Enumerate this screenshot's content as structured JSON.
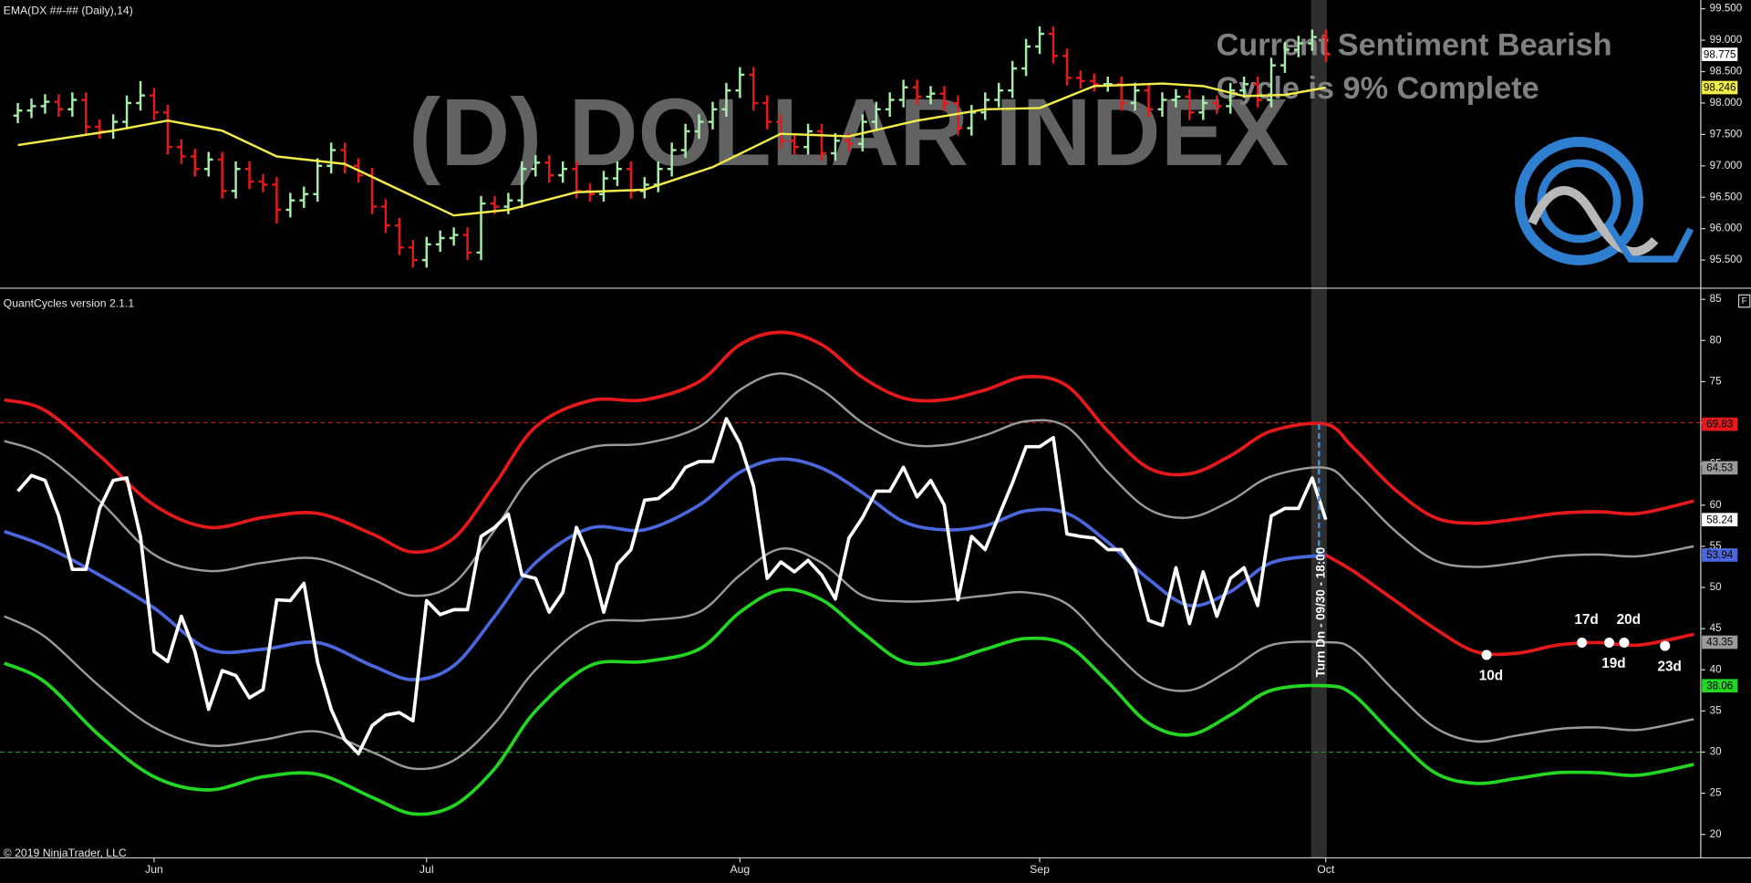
{
  "chart_data": [
    {
      "type": "ohlc",
      "title": "EMA(DX ##-## (Daily),14)",
      "watermark": "(D) DOLLAR INDEX",
      "annotations": [
        "Current Sentiment Bearish",
        "Cycle is 9% Complete"
      ],
      "up_color": "#a8ecab",
      "down_color": "#e5191c",
      "xlim": [
        -11.31,
        113.52
      ],
      "ylim": [
        95.07,
        99.64
      ],
      "yticks": [
        {
          "value": 95.5,
          "label": "95.500"
        },
        {
          "value": 96,
          "label": "96.000"
        },
        {
          "value": 96.5,
          "label": "96.500"
        },
        {
          "value": 97,
          "label": "97.000"
        },
        {
          "value": 97.5,
          "label": "97.500"
        },
        {
          "value": 98,
          "label": "98.000"
        },
        {
          "value": 98.5,
          "label": "98.500"
        },
        {
          "value": 99,
          "label": "99.000"
        },
        {
          "value": 99.5,
          "label": "99.500"
        }
      ],
      "x": [
        -10,
        -9,
        -8,
        -7,
        -6,
        -5,
        -4,
        -3,
        -2,
        -1,
        0,
        1,
        2,
        3,
        4,
        5,
        6,
        7,
        8,
        9,
        10,
        11,
        12,
        13,
        14,
        15,
        16,
        17,
        18,
        19,
        20,
        21,
        22,
        23,
        24,
        25,
        26,
        27,
        28,
        29,
        30,
        31,
        32,
        33,
        34,
        35,
        36,
        37,
        38,
        39,
        40,
        41,
        42,
        43,
        44,
        45,
        46,
        47,
        48,
        49,
        50,
        51,
        52,
        53,
        54,
        55,
        56,
        57,
        58,
        59,
        60,
        61,
        62,
        63,
        64,
        65,
        66,
        67,
        68,
        69,
        70,
        71,
        72,
        73,
        74,
        75,
        76,
        77,
        78,
        79,
        80,
        81,
        82,
        83,
        84,
        85,
        86
      ],
      "open": [
        97.8,
        97.88,
        97.95,
        98.02,
        97.9,
        98.05,
        97.62,
        97.55,
        97.7,
        98.0,
        98.12,
        97.85,
        97.3,
        97.15,
        96.95,
        97.1,
        96.6,
        96.95,
        96.75,
        96.7,
        96.3,
        96.45,
        96.55,
        97.0,
        97.25,
        97.0,
        96.85,
        96.35,
        96.05,
        95.7,
        95.5,
        95.75,
        95.85,
        95.9,
        95.62,
        96.4,
        96.35,
        96.45,
        96.95,
        97.05,
        96.85,
        96.95,
        96.6,
        96.55,
        96.8,
        96.95,
        96.6,
        96.7,
        96.95,
        97.25,
        97.55,
        97.7,
        97.9,
        98.2,
        98.45,
        98.0,
        97.7,
        97.4,
        97.3,
        97.55,
        97.2,
        97.4,
        97.35,
        97.7,
        97.9,
        98.05,
        98.25,
        98.1,
        98.15,
        98.0,
        97.6,
        97.85,
        98.05,
        98.2,
        98.55,
        98.9,
        99.1,
        98.75,
        98.4,
        98.35,
        98.3,
        98.3,
        98.0,
        98.2,
        97.9,
        98.05,
        98.1,
        97.85,
        98.0,
        97.95,
        98.2,
        98.3,
        98.05,
        98.6,
        98.85,
        98.95,
        99.05
      ],
      "high": [
        98.0,
        98.07,
        98.14,
        98.14,
        98.17,
        98.17,
        97.74,
        97.82,
        98.12,
        98.35,
        98.24,
        97.97,
        97.42,
        97.27,
        97.22,
        97.22,
        97.07,
        97.07,
        96.87,
        96.82,
        96.57,
        96.67,
        97.12,
        97.37,
        97.37,
        97.12,
        96.97,
        96.47,
        96.17,
        95.82,
        95.87,
        95.97,
        96.02,
        96.02,
        96.52,
        96.52,
        96.57,
        97.07,
        97.17,
        97.17,
        97.07,
        97.07,
        96.72,
        96.92,
        97.07,
        97.07,
        96.82,
        97.07,
        97.37,
        97.67,
        97.82,
        98.02,
        98.32,
        98.57,
        98.57,
        98.12,
        97.82,
        97.52,
        97.67,
        97.67,
        97.52,
        97.52,
        97.82,
        98.02,
        98.17,
        98.37,
        98.37,
        98.27,
        98.27,
        98.12,
        97.97,
        98.17,
        98.32,
        98.67,
        99.02,
        99.22,
        99.22,
        98.87,
        98.52,
        98.47,
        98.42,
        98.42,
        98.32,
        98.32,
        98.17,
        98.22,
        98.22,
        98.12,
        98.12,
        98.32,
        98.42,
        98.42,
        98.72,
        98.97,
        99.07,
        99.17,
        99.17
      ],
      "low": [
        97.68,
        97.76,
        97.83,
        97.78,
        97.78,
        97.5,
        97.43,
        97.43,
        97.58,
        97.88,
        97.73,
        97.18,
        97.03,
        96.83,
        96.83,
        96.48,
        96.48,
        96.63,
        96.58,
        96.08,
        96.18,
        96.33,
        96.43,
        96.88,
        96.88,
        96.73,
        96.23,
        95.93,
        95.58,
        95.38,
        95.38,
        95.63,
        95.73,
        95.5,
        95.5,
        96.23,
        96.23,
        96.33,
        96.83,
        96.73,
        96.73,
        96.48,
        96.43,
        96.43,
        96.68,
        96.48,
        96.48,
        96.58,
        96.83,
        97.13,
        97.43,
        97.58,
        97.78,
        98.08,
        97.88,
        97.58,
        97.28,
        97.18,
        97.18,
        97.08,
        97.08,
        97.23,
        97.23,
        97.58,
        97.78,
        97.93,
        97.98,
        97.98,
        97.88,
        97.48,
        97.48,
        97.73,
        97.93,
        98.08,
        98.43,
        98.78,
        98.63,
        98.28,
        98.23,
        98.18,
        98.18,
        97.88,
        97.88,
        97.78,
        97.78,
        97.93,
        97.73,
        97.73,
        97.83,
        97.83,
        98.08,
        97.93,
        97.93,
        98.48,
        98.73,
        98.83,
        98.655
      ],
      "close": [
        97.88,
        97.95,
        98.02,
        97.9,
        98.05,
        97.62,
        97.55,
        97.7,
        98.0,
        98.12,
        97.85,
        97.3,
        97.15,
        96.95,
        97.1,
        96.6,
        96.95,
        96.75,
        96.7,
        96.3,
        96.45,
        96.55,
        97.0,
        97.25,
        97.0,
        96.85,
        96.35,
        96.05,
        95.7,
        95.5,
        95.75,
        95.85,
        95.9,
        95.62,
        96.4,
        96.35,
        96.45,
        96.95,
        97.05,
        96.85,
        96.95,
        96.6,
        96.55,
        96.8,
        96.95,
        96.6,
        96.7,
        96.95,
        97.25,
        97.55,
        97.7,
        97.9,
        98.2,
        98.45,
        98.0,
        97.7,
        97.4,
        97.3,
        97.55,
        97.2,
        97.4,
        97.35,
        97.7,
        97.9,
        98.05,
        98.25,
        98.1,
        98.15,
        98.0,
        97.6,
        97.85,
        98.05,
        98.2,
        98.55,
        98.9,
        99.1,
        98.75,
        98.4,
        98.35,
        98.3,
        98.3,
        98.0,
        98.2,
        97.9,
        98.05,
        98.1,
        97.85,
        98.0,
        97.95,
        98.2,
        98.3,
        98.05,
        98.6,
        98.85,
        98.95,
        99.05,
        98.775
      ],
      "series": [
        {
          "color": "#f2ec4a",
          "width": 2,
          "x": [
            -10,
            -3,
            1,
            5,
            9,
            14,
            18,
            22,
            26,
            31,
            36,
            41,
            46,
            51,
            56,
            61,
            65,
            69,
            74,
            77,
            80,
            83,
            86
          ],
          "values": [
            97.33,
            97.56,
            97.72,
            97.56,
            97.15,
            97.03,
            96.62,
            96.21,
            96.3,
            96.58,
            96.62,
            96.98,
            97.51,
            97.47,
            97.72,
            97.9,
            97.92,
            98.27,
            98.31,
            98.27,
            98.11,
            98.13,
            98.246
          ]
        }
      ]
    },
    {
      "type": "line",
      "title": "QuantCycles version 2.1.1",
      "footer": "© 2019 NinjaTrader, LLC",
      "button": "F",
      "turn": {
        "x": 85.5,
        "label": "Turn Dn - 09/30 - 18:00"
      },
      "xlim": [
        -11.31,
        113.52
      ],
      "ylim": [
        17.15,
        86.22
      ],
      "xticks": [
        {
          "value": 0,
          "label": "Jun"
        },
        {
          "value": 20,
          "label": "Jul"
        },
        {
          "value": 43,
          "label": "Aug"
        },
        {
          "value": 65,
          "label": "Sep"
        },
        {
          "value": 86,
          "label": "Oct"
        }
      ],
      "yticks": [
        20,
        25,
        30,
        35,
        40,
        45,
        50,
        55,
        60,
        65,
        70,
        75,
        80,
        85
      ],
      "hlines": [
        {
          "value": 70,
          "color": "#b3261e"
        },
        {
          "value": 30,
          "color": "#2f8f2f"
        }
      ],
      "x": [
        -11,
        -8,
        -4,
        0,
        4,
        8,
        12,
        16,
        19,
        22,
        25,
        28,
        32,
        36,
        40,
        43,
        46,
        49,
        52,
        55,
        58,
        61,
        64,
        67,
        70,
        73,
        76,
        79,
        82,
        86,
        88,
        91,
        94,
        97,
        100,
        103,
        106,
        109,
        113
      ],
      "series": [
        {
          "color": "#e5191c",
          "width": 3,
          "smooth": true,
          "values": [
            72.8,
            71.5,
            66,
            60,
            57.3,
            58.5,
            59,
            56.5,
            54.3,
            56,
            62.5,
            69.5,
            72.7,
            72.8,
            75,
            79.5,
            81,
            79.5,
            75.5,
            73,
            72.8,
            74,
            75.6,
            74.5,
            69,
            64.5,
            63.8,
            66,
            69,
            69.83,
            67,
            62,
            58.5,
            57.8,
            58.3,
            59,
            59.2,
            59,
            60.5
          ]
        },
        {
          "color": "#9a9a9a",
          "width": 2,
          "smooth": true,
          "values": [
            67.8,
            66,
            60.5,
            54,
            52,
            53,
            53.5,
            51,
            49,
            50.5,
            57,
            64,
            67,
            67.5,
            69.5,
            74,
            76,
            74,
            70,
            67.5,
            67.3,
            68.5,
            70.2,
            69.5,
            64,
            59.5,
            58.5,
            60.5,
            63.5,
            64.53,
            62,
            57,
            53.3,
            52.5,
            53,
            53.8,
            54,
            53.8,
            55
          ]
        },
        {
          "color": "#4b67dd",
          "width": 3,
          "smooth": true,
          "values": [
            56.8,
            55,
            51.5,
            47.5,
            42.5,
            42.5,
            43.3,
            40.5,
            38.8,
            40.5,
            46.5,
            53,
            57.2,
            57,
            60,
            64,
            65.6,
            64.5,
            61.5,
            58,
            57,
            57.5,
            59.3,
            59,
            55.5,
            51,
            47.8,
            49.5,
            53,
            53.94,
            null,
            null,
            null,
            null,
            null,
            null,
            null,
            null,
            null
          ]
        },
        {
          "color": "#9a9a9a",
          "width": 2,
          "smooth": true,
          "values": [
            46.5,
            44,
            38,
            33,
            30.8,
            31.5,
            32.5,
            30,
            28,
            29,
            33.5,
            40,
            45.5,
            46,
            47,
            51.5,
            54.7,
            53,
            49,
            48.3,
            48.5,
            49,
            49.4,
            48,
            43,
            38.5,
            37.5,
            40,
            43,
            43.35,
            42.5,
            37.5,
            33,
            31.3,
            32,
            32.8,
            33,
            32.7,
            34
          ]
        },
        {
          "color": "#22d622",
          "width": 3,
          "smooth": true,
          "values": [
            40.8,
            38.5,
            32,
            27,
            25.4,
            27,
            27.3,
            24.5,
            22.5,
            23.5,
            28,
            35,
            40.5,
            41,
            42.5,
            47,
            49.7,
            48.5,
            44.5,
            41,
            41,
            42.5,
            43.8,
            43,
            38.5,
            33.5,
            32.1,
            34.5,
            37.5,
            38.06,
            37,
            32,
            27.5,
            26.2,
            26.8,
            27.5,
            27.5,
            27.2,
            28.5
          ]
        },
        {
          "color": "#ffffff",
          "width": 3,
          "x": [
            -10,
            -9,
            -8,
            -7,
            -6,
            -5,
            -4,
            -3,
            -2,
            -1,
            0,
            1,
            2,
            3,
            4,
            5,
            6,
            7,
            8,
            9,
            10,
            11,
            12,
            13,
            14,
            15,
            16,
            17,
            18,
            19,
            20,
            21,
            22,
            23,
            24,
            25,
            26,
            27,
            28,
            29,
            30,
            31,
            32,
            33,
            34,
            35,
            36,
            37,
            38,
            39,
            40,
            41,
            42,
            43,
            44,
            45,
            46,
            47,
            48,
            49,
            50,
            51,
            52,
            53,
            54,
            55,
            56,
            57,
            58,
            59,
            60,
            61,
            62,
            63,
            64,
            65,
            66,
            67,
            68,
            69,
            70,
            71,
            72,
            73,
            74,
            75,
            76,
            77,
            78,
            79,
            80,
            81,
            82,
            83,
            84,
            85,
            86
          ],
          "values": [
            61.7,
            63.6,
            63,
            58.7,
            52.2,
            52.2,
            59.6,
            63,
            63.3,
            56.2,
            42.2,
            41,
            46.5,
            42.2,
            35.2,
            39.9,
            39.3,
            36.6,
            37.6,
            48.5,
            48.4,
            50.5,
            40.9,
            35.2,
            31.5,
            29.8,
            33.2,
            34.5,
            34.8,
            33.8,
            48.4,
            46.7,
            47.3,
            47.3,
            56.2,
            57.3,
            58.9,
            51.5,
            51.1,
            47,
            49.4,
            57.3,
            53.5,
            47,
            52.8,
            54.6,
            60.6,
            60.8,
            62.1,
            64.6,
            65.3,
            65.3,
            70.5,
            67.5,
            62.3,
            51.1,
            53.1,
            51.9,
            53.3,
            51.5,
            48.6,
            56,
            58.5,
            61.7,
            61.7,
            64.6,
            61,
            63,
            60,
            48.5,
            56.2,
            54.6,
            58.7,
            62.7,
            67.1,
            67.1,
            68.2,
            56.5,
            56.2,
            56,
            54.6,
            54.6,
            52.2,
            46,
            45.4,
            52.4,
            45.6,
            51.9,
            46.5,
            51.1,
            52.4,
            47.8,
            58.7,
            59.6,
            59.6,
            63.3,
            58.24
          ]
        },
        {
          "color": "#e5191c",
          "width": 3,
          "smooth": true,
          "x": [
            86,
            88,
            91,
            94,
            97,
            100,
            103,
            106,
            109,
            113
          ],
          "values": [
            53.94,
            52,
            48.5,
            45,
            42.2,
            42,
            43,
            43.3,
            43,
            44.3
          ]
        }
      ],
      "points": {
        "color": "#ffffff",
        "x": [
          97.8,
          104.8,
          106.8,
          107.9,
          110.9
        ],
        "values": [
          41.8,
          43.3,
          43.3,
          43.3,
          42.9
        ],
        "labels": [
          "10d",
          "17d",
          "19d",
          "20d",
          "23d"
        ]
      }
    }
  ]
}
